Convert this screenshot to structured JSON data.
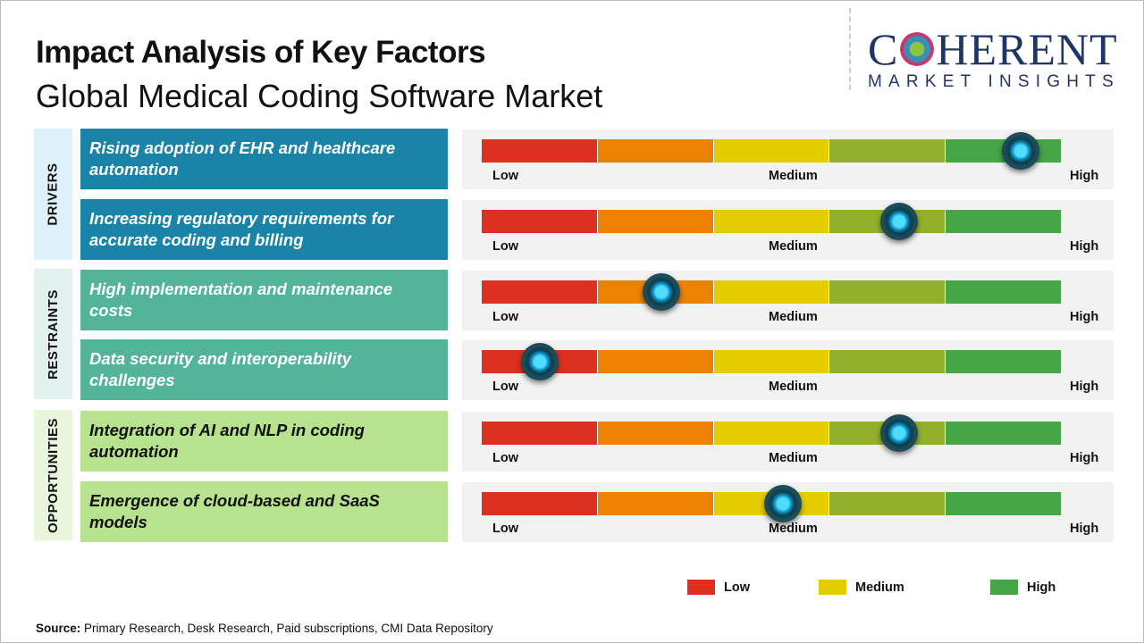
{
  "header": {
    "title": "Impact Analysis of Key Factors",
    "subtitle": "Global Medical Coding Software Market"
  },
  "logo": {
    "line1_a": "C",
    "line1_b": "HERENT",
    "line2": "MARKET INSIGHTS"
  },
  "chart_data": {
    "type": "gauge-scale",
    "scale_labels": {
      "low": "Low",
      "medium": "Medium",
      "high": "High"
    },
    "segment_colors": [
      "#dc3020",
      "#ec8200",
      "#e5cc00",
      "#92b02a",
      "#45a645"
    ],
    "categories": [
      {
        "name": "DRIVERS",
        "label_bg": "#dff1f8",
        "box_color": "#1a84a8",
        "text_color": "#ffffff"
      },
      {
        "name": "RESTRAINTS",
        "label_bg": "#e2f1ee",
        "box_color": "#52b498",
        "text_color": "#ffffff"
      },
      {
        "name": "OPPORTUNITIES",
        "label_bg": "#eaf5de",
        "box_color": "#b7e38f",
        "text_color": "#111111"
      }
    ],
    "factors": [
      {
        "category": 0,
        "text": "Rising adoption of EHR and healthcare automation",
        "impact": 0.93
      },
      {
        "category": 0,
        "text": "Increasing regulatory requirements for accurate coding and billing",
        "impact": 0.72
      },
      {
        "category": 1,
        "text": "High implementation and maintenance costs",
        "impact": 0.31
      },
      {
        "category": 1,
        "text": "Data security and interoperability challenges",
        "impact": 0.1
      },
      {
        "category": 2,
        "text": "Integration of AI and NLP in coding automation",
        "impact": 0.72
      },
      {
        "category": 2,
        "text": "Emergence of cloud-based and SaaS models",
        "impact": 0.52
      }
    ],
    "legend": [
      {
        "label": "Low",
        "color": "#dc3020"
      },
      {
        "label": "Medium",
        "color": "#e5cc00"
      },
      {
        "label": "High",
        "color": "#45a645"
      }
    ]
  },
  "footer": {
    "source_label": "Source:",
    "source_text": " Primary Research, Desk Research, Paid subscriptions, CMI Data Repository"
  }
}
